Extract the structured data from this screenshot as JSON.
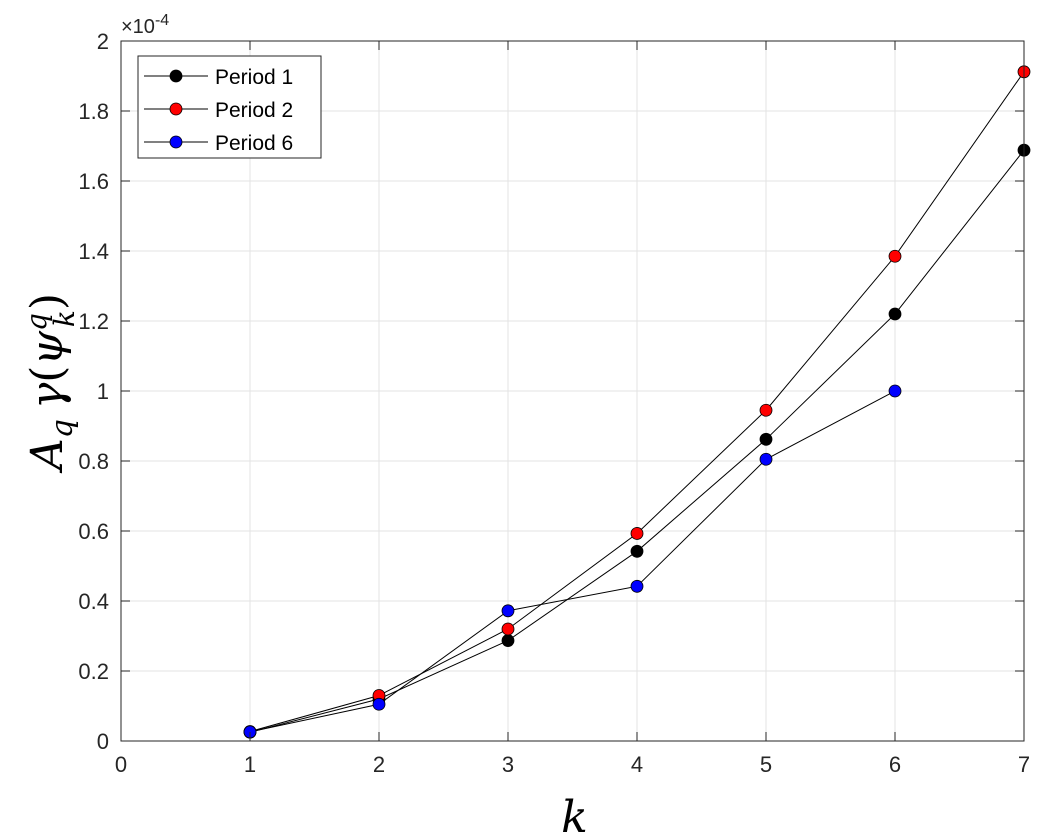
{
  "chart_data": {
    "type": "line",
    "xlabel": "k",
    "ylabel_parts": {
      "A": "A",
      "q_sub": "q",
      "gamma": "γ",
      "open": "(",
      "psi": "ψ",
      "q_sup": "q",
      "k_sub": "k",
      "close": ")"
    },
    "y_exponent": {
      "base": "×10",
      "power": "-4"
    },
    "xlim": [
      0,
      7
    ],
    "ylim": [
      0,
      2
    ],
    "xticks": [
      "0",
      "1",
      "2",
      "3",
      "4",
      "5",
      "6",
      "7"
    ],
    "yticks": [
      "0",
      "0.2",
      "0.4",
      "0.6",
      "0.8",
      "1",
      "1.2",
      "1.4",
      "1.6",
      "1.8",
      "2"
    ],
    "grid": true,
    "legend_position": "top-left",
    "series": [
      {
        "name": "Period 1",
        "color": "#000000",
        "x": [
          1,
          2,
          3,
          4,
          5,
          6,
          7
        ],
        "y": [
          0.025,
          0.12,
          0.287,
          0.542,
          0.862,
          1.22,
          1.688
        ]
      },
      {
        "name": "Period 2",
        "color": "#ff0000",
        "x": [
          1,
          2,
          3,
          4,
          5,
          6,
          7
        ],
        "y": [
          0.027,
          0.13,
          0.32,
          0.593,
          0.945,
          1.385,
          1.912
        ]
      },
      {
        "name": "Period 6",
        "color": "#0000ff",
        "x": [
          1,
          2,
          3,
          4,
          5,
          6
        ],
        "y": [
          0.026,
          0.105,
          0.372,
          0.442,
          0.805,
          1.0
        ]
      }
    ]
  }
}
